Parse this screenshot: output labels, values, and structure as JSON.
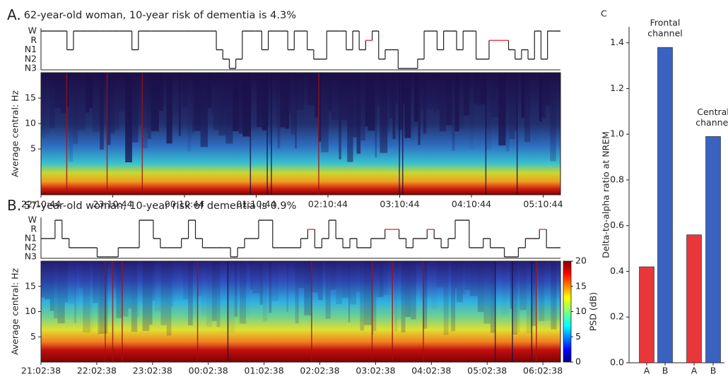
{
  "chart_data": [
    {
      "type": "sleep",
      "panel": "A.",
      "title": "62-year-old woman, 10-year risk of dementia is 4.3%",
      "stages": [
        "W",
        "R",
        "N1",
        "N2",
        "N3"
      ],
      "hypnogram": [
        "W",
        "W",
        "W",
        "W",
        "N1",
        "W",
        "W",
        "W",
        "W",
        "W",
        "W",
        "W",
        "W",
        "W",
        "N1",
        "W",
        "W",
        "W",
        "W",
        "W",
        "W",
        "W",
        "W",
        "W",
        "W",
        "W",
        "W",
        "N1",
        "N2",
        "N3",
        "N2",
        "W",
        "W",
        "W",
        "N1",
        "W",
        "W",
        "W",
        "N1",
        "W",
        "W",
        "N1",
        "N2",
        "N2",
        "W",
        "W",
        "W",
        "N1",
        "W",
        "N1",
        "R",
        "W",
        "N2",
        "N1",
        "N1",
        "N3",
        "N3",
        "N3",
        "N2",
        "W",
        "W",
        "N1",
        "W",
        "W",
        "N1",
        "W",
        "W",
        "N2",
        "N2",
        "R",
        "R",
        "R",
        "N1",
        "N2",
        "N1",
        "N2",
        "W",
        "N2",
        "W",
        "W"
      ],
      "line_color": "#222222",
      "rem_color": "#e8363b",
      "ylabel": "Average central: Hz",
      "ylim": [
        -4,
        20
      ],
      "yticks": [
        5,
        10,
        15
      ],
      "xticks": [
        "22:10:44",
        "23:10:44",
        "00:10:44",
        "01:10:44",
        "02:10:44",
        "03:10:44",
        "04:10:44",
        "05:10:44"
      ]
    },
    {
      "type": "sleep",
      "panel": "B.",
      "title": "57-year-old woman, 10-year risk of dementia is 0.9%",
      "stages": [
        "W",
        "R",
        "N1",
        "N2",
        "N3"
      ],
      "hypnogram": [
        "N1",
        "N1",
        "W",
        "N1",
        "N2",
        "N2",
        "N2",
        "N2",
        "N3",
        "N3",
        "N3",
        "N2",
        "N2",
        "N2",
        "W",
        "W",
        "N1",
        "N2",
        "N2",
        "N2",
        "N1",
        "W",
        "N1",
        "N2",
        "N2",
        "N2",
        "N2",
        "N3",
        "N2",
        "N1",
        "N1",
        "W",
        "W",
        "N2",
        "N2",
        "N2",
        "N2",
        "N1",
        "R",
        "N2",
        "N1",
        "W",
        "N1",
        "N2",
        "N1",
        "N2",
        "N2",
        "N1",
        "N1",
        "R",
        "R",
        "N1",
        "N2",
        "N1",
        "N1",
        "R",
        "N1",
        "N2",
        "N1",
        "W",
        "W",
        "N2",
        "N2",
        "N1",
        "N2",
        "N2",
        "N3",
        "N3",
        "N2",
        "N1",
        "N1",
        "R",
        "N2",
        "N2"
      ],
      "line_color": "#222222",
      "rem_color": "#e8363b",
      "ylabel": "Average central: Hz",
      "ylim": [
        0,
        20
      ],
      "yticks": [
        5,
        10,
        15
      ],
      "xticks": [
        "21:02:38",
        "22:02:38",
        "23:02:38",
        "00:02:38",
        "01:02:38",
        "02:02:38",
        "03:02:38",
        "04:02:38",
        "05:02:38",
        "06:02:38"
      ],
      "colorbar": {
        "label": "PSD (dB)",
        "lim": [
          0,
          20
        ],
        "ticks": [
          0,
          5,
          10,
          15,
          20
        ]
      }
    },
    {
      "type": "bar",
      "panel": "C",
      "ylabel": "Delta-to-alpha ratio at NREM",
      "categories": [
        "A",
        "B",
        "A",
        "B"
      ],
      "values": [
        0.42,
        1.38,
        0.56,
        0.99
      ],
      "colors": [
        "#e8363b",
        "#3a62c0",
        "#e8363b",
        "#3a62c0"
      ],
      "ylim": [
        0,
        1.47
      ],
      "yticks": [
        {
          "value": 0,
          "label": "0.0"
        },
        0.2,
        0.4,
        0.6,
        0.8,
        {
          "value": 1,
          "label": "1.0"
        },
        1.2,
        1.4
      ],
      "annotations": [
        {
          "lines": [
            "Frontal",
            "channel"
          ]
        },
        {
          "lines": [
            "Central",
            "channel"
          ]
        }
      ]
    }
  ]
}
